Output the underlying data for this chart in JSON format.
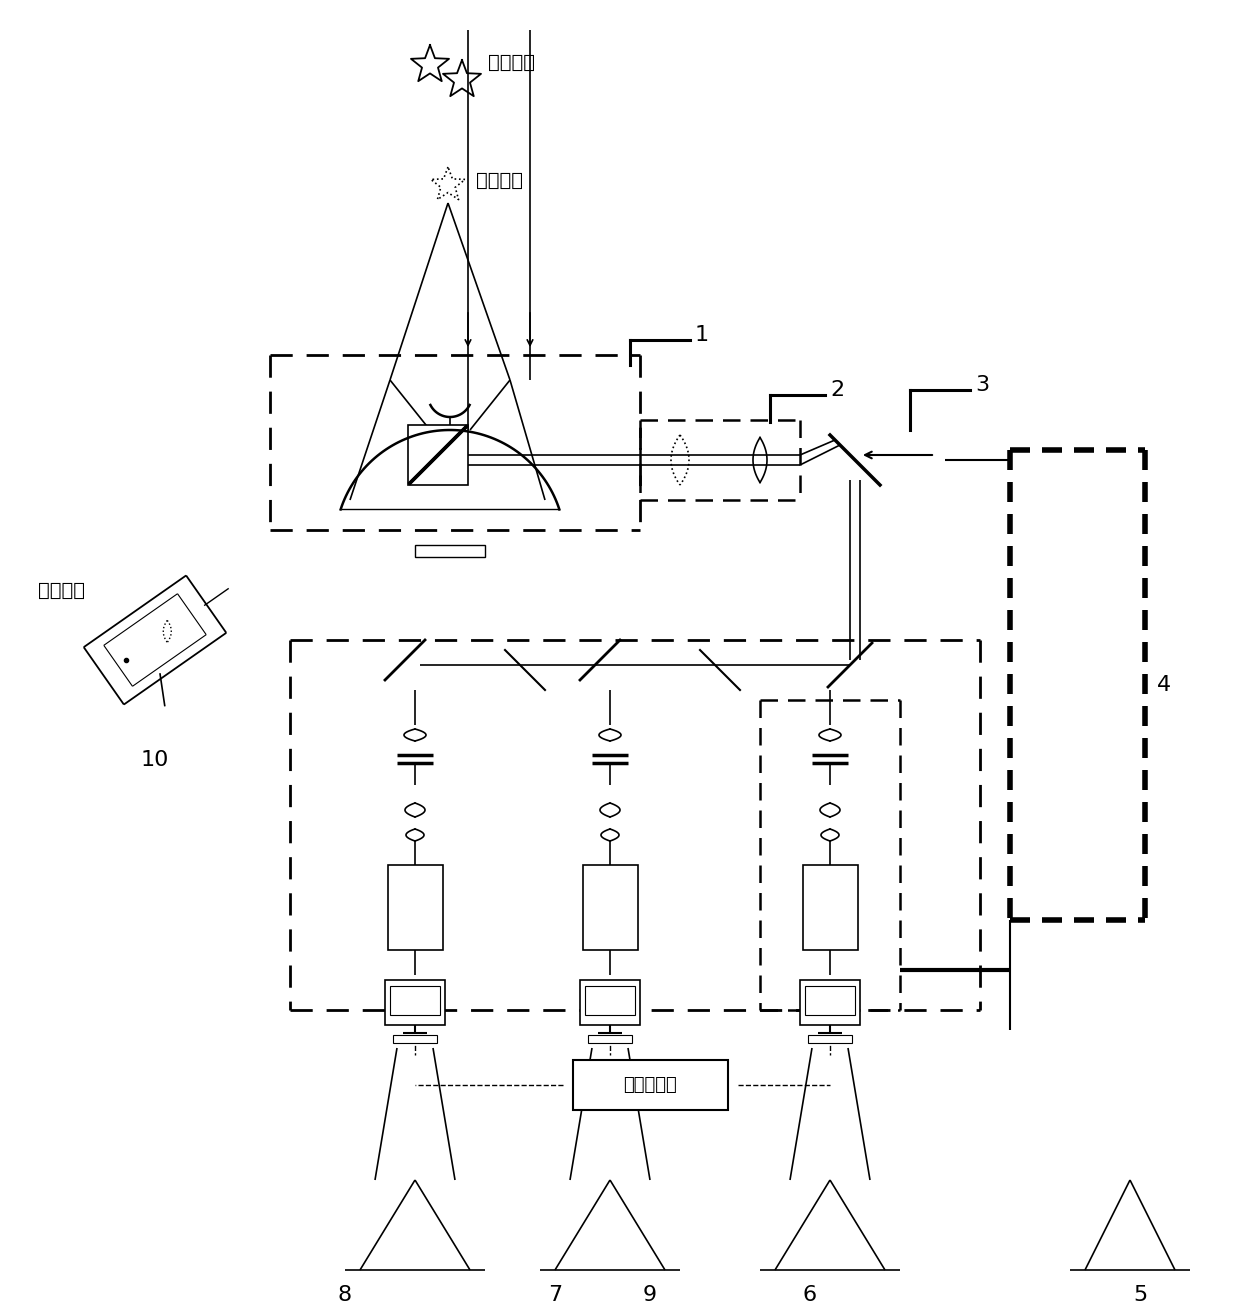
{
  "bg_color": "#ffffff",
  "labels": {
    "dual_star": "双星系统",
    "artificial_beacon": "人造信标",
    "beacon_laser": "信标激光",
    "signal_gen": "信号发生器"
  },
  "fig_width": 12.4,
  "fig_height": 13.16
}
